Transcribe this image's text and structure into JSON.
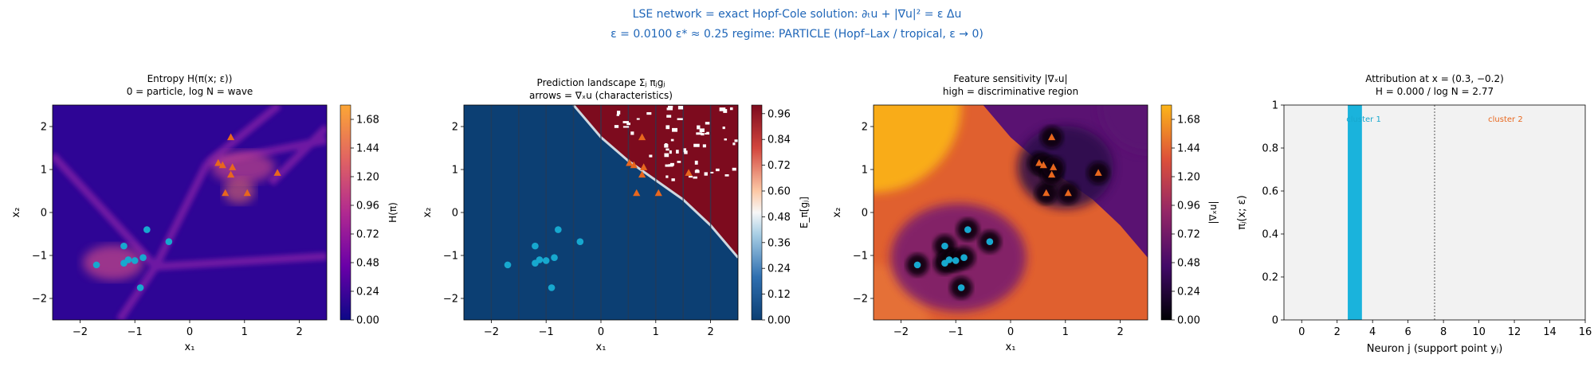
{
  "suptitle": {
    "line1": "LSE network = exact Hopf-Cole solution: ∂ₜu + |∇u|² = ε Δu",
    "line2": "ε = 0.0100    ε* ≈ 0.25    regime: PARTICLE  (Hopf–Lax / tropical,  ε → 0)"
  },
  "colors": {
    "class0": "#17a8cf",
    "class1": "#e8671e",
    "bar": "#1ab3dc",
    "suptitle": "#1f66b8",
    "pred_low": "#0c3f73",
    "pred_high": "#7d0b1e"
  },
  "panel1": {
    "title1": "Entropy  H(π(x; ε))",
    "title2": "0 = particle,  log N = wave",
    "xlabel": "x₁",
    "ylabel": "x₂",
    "cbar_label": "H(π)",
    "cbar_ticks": [
      "0.00",
      "0.24",
      "0.48",
      "0.72",
      "0.96",
      "1.20",
      "1.44",
      "1.68"
    ]
  },
  "panel2": {
    "title1": "Prediction landscape  Σⱼ πⱼgⱼ",
    "title2": "arrows = ∇ₓu (characteristics)",
    "xlabel": "x₁",
    "ylabel": "x₂",
    "cbar_label": "E_π[gⱼ]",
    "cbar_ticks": [
      "0.00",
      "0.12",
      "0.24",
      "0.36",
      "0.48",
      "0.60",
      "0.72",
      "0.84",
      "0.96"
    ]
  },
  "panel3": {
    "title1": "Feature sensitivity  |∇ₓu|",
    "title2": "high = discriminative region",
    "xlabel": "x₁",
    "ylabel": "x₂",
    "cbar_label": "|∇ₓu|",
    "cbar_ticks": [
      "0.00",
      "0.24",
      "0.48",
      "0.72",
      "0.96",
      "1.20",
      "1.44",
      "1.68"
    ]
  },
  "panel4": {
    "title1": "Attribution at x = (0.3, −0.2)",
    "title2": "H = 0.000 / log N = 2.77",
    "xlabel": "Neuron j  (support point yⱼ)",
    "ylabel": "πⱼ(x; ε)",
    "cluster1_label": "cluster 1",
    "cluster2_label": "cluster 2"
  },
  "chart_data": [
    {
      "type": "heatmap",
      "xlim": [
        -2.5,
        2.5
      ],
      "ylim": [
        -2.5,
        2.5
      ],
      "xticks": [
        -2,
        -1,
        0,
        1,
        2
      ],
      "yticks": [
        -2,
        -1,
        0,
        1,
        2
      ],
      "clim": [
        0,
        1.8
      ],
      "class0_points": [
        [
          -1.7,
          -1.22
        ],
        [
          -1.2,
          -0.78
        ],
        [
          -1.2,
          -1.18
        ],
        [
          -1.12,
          -1.1
        ],
        [
          -1.0,
          -1.12
        ],
        [
          -0.9,
          -1.75
        ],
        [
          -0.85,
          -1.05
        ],
        [
          -0.78,
          -0.4
        ],
        [
          -0.38,
          -0.68
        ]
      ],
      "class1_points": [
        [
          0.52,
          1.15
        ],
        [
          0.6,
          1.1
        ],
        [
          0.65,
          0.45
        ],
        [
          0.75,
          1.75
        ],
        [
          0.75,
          0.88
        ],
        [
          0.78,
          1.05
        ],
        [
          1.05,
          0.45
        ],
        [
          1.6,
          0.92
        ]
      ]
    },
    {
      "type": "heatmap",
      "xlim": [
        -2.5,
        2.5
      ],
      "ylim": [
        -2.5,
        2.5
      ],
      "xticks": [
        -2,
        -1,
        0,
        1,
        2
      ],
      "yticks": [
        -2,
        -1,
        0,
        1,
        2
      ],
      "clim": [
        0,
        1.0
      ],
      "boundary": [
        [
          -0.5,
          2.5
        ],
        [
          0.0,
          1.75
        ],
        [
          0.5,
          1.2
        ],
        [
          1.0,
          0.75
        ],
        [
          1.5,
          0.3
        ],
        [
          2.0,
          -0.3
        ],
        [
          2.5,
          -1.05
        ]
      ],
      "class0_points": [
        [
          -1.7,
          -1.22
        ],
        [
          -1.2,
          -0.78
        ],
        [
          -1.2,
          -1.18
        ],
        [
          -1.12,
          -1.1
        ],
        [
          -1.0,
          -1.12
        ],
        [
          -0.9,
          -1.75
        ],
        [
          -0.85,
          -1.05
        ],
        [
          -0.78,
          -0.4
        ],
        [
          -0.38,
          -0.68
        ]
      ],
      "class1_points": [
        [
          0.52,
          1.15
        ],
        [
          0.6,
          1.1
        ],
        [
          0.65,
          0.45
        ],
        [
          0.75,
          1.75
        ],
        [
          0.75,
          0.88
        ],
        [
          0.78,
          1.05
        ],
        [
          1.05,
          0.45
        ],
        [
          1.6,
          0.92
        ]
      ]
    },
    {
      "type": "heatmap",
      "xlim": [
        -2.5,
        2.5
      ],
      "ylim": [
        -2.5,
        2.5
      ],
      "xticks": [
        -2,
        -1,
        0,
        1,
        2
      ],
      "yticks": [
        -2,
        -1,
        0,
        1,
        2
      ],
      "clim": [
        0,
        1.8
      ],
      "class0_points": [
        [
          -1.7,
          -1.22
        ],
        [
          -1.2,
          -0.78
        ],
        [
          -1.2,
          -1.18
        ],
        [
          -1.12,
          -1.1
        ],
        [
          -1.0,
          -1.12
        ],
        [
          -0.9,
          -1.75
        ],
        [
          -0.85,
          -1.05
        ],
        [
          -0.78,
          -0.4
        ],
        [
          -0.38,
          -0.68
        ]
      ],
      "class1_points": [
        [
          0.52,
          1.15
        ],
        [
          0.6,
          1.1
        ],
        [
          0.65,
          0.45
        ],
        [
          0.75,
          1.75
        ],
        [
          0.75,
          0.88
        ],
        [
          0.78,
          1.05
        ],
        [
          1.05,
          0.45
        ],
        [
          1.6,
          0.92
        ]
      ]
    },
    {
      "type": "bar",
      "x": [
        0,
        1,
        2,
        3,
        4,
        5,
        6,
        7,
        8,
        9,
        10,
        11,
        12,
        13,
        14,
        15
      ],
      "values": [
        0,
        0,
        0,
        1,
        0,
        0,
        0,
        0,
        0,
        0,
        0,
        0,
        0,
        0,
        0,
        0
      ],
      "xlim": [
        -1,
        16
      ],
      "ylim": [
        0,
        1.0
      ],
      "xticks": [
        0,
        2,
        4,
        6,
        8,
        10,
        12,
        14,
        16
      ],
      "yticks": [
        0.0,
        0.2,
        0.4,
        0.6,
        0.8,
        1.0
      ],
      "divider_x": 7.5
    }
  ]
}
